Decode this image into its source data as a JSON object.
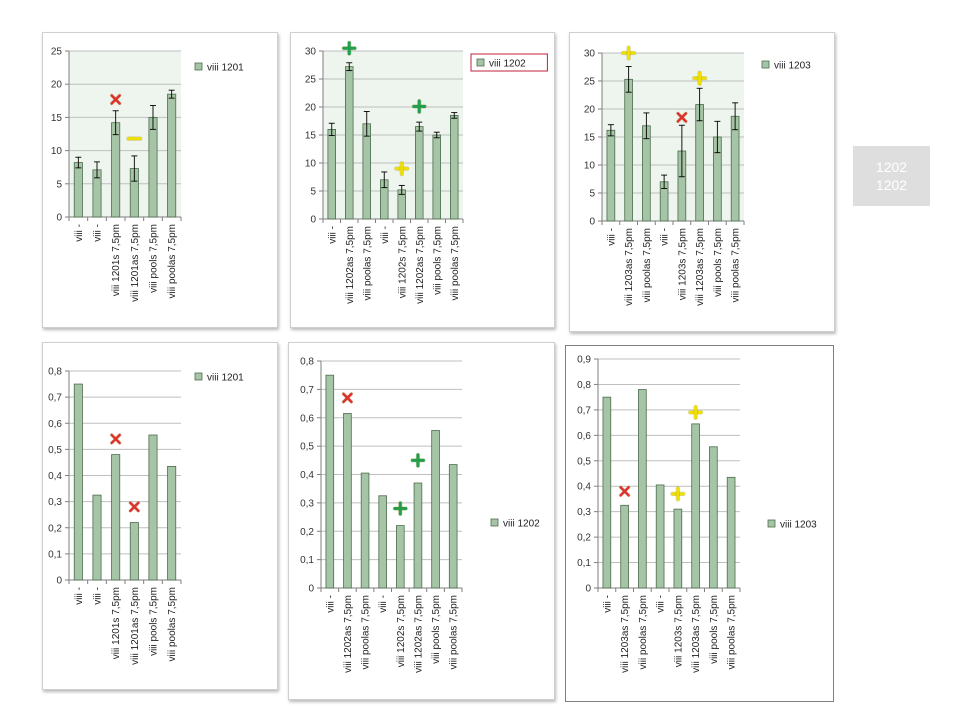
{
  "note": {
    "lines": [
      "1202",
      "1202"
    ]
  },
  "chart_data": [
    {
      "type": "bar",
      "categories": [
        "viii -",
        "viii -",
        "viii 1201s 7,5pm",
        "viii 1201as 7,5pm",
        "viii pools 7,5pm",
        "viii poolas 7,5pm"
      ],
      "series": [
        {
          "name": "viii 1201",
          "values": [
            8.2,
            7.1,
            14.2,
            7.3,
            15.0,
            18.5
          ],
          "errors": [
            0.8,
            1.2,
            1.8,
            1.9,
            1.8,
            0.6
          ]
        }
      ],
      "ylim": [
        0,
        25
      ],
      "yticks": [
        "0",
        "5",
        "10",
        "15",
        "20",
        "25"
      ],
      "legend": "top-right",
      "annotations": [
        {
          "symbol": "x",
          "color": "#e03030",
          "category": 2,
          "value": 17.7
        },
        {
          "symbol": "-",
          "color": "#f0e000",
          "category": 3,
          "value": 11.8
        }
      ],
      "colors": {
        "bar": "#a6c4a6",
        "bar_border": "#4d6b4d",
        "plot_bg": "#eef4ee"
      }
    },
    {
      "type": "bar",
      "categories": [
        "viii -",
        "viii 1202as 7,5pm",
        "viii poolas 7,5pm",
        "viii -",
        "viii 1202s 7,5pm",
        "viii 1202as 7,5pm",
        "viii pools 7,5pm",
        "viii poolas 7,5pm"
      ],
      "series": [
        {
          "name": "viii 1202",
          "values": [
            16.0,
            27.2,
            17.0,
            7.0,
            5.2,
            16.5,
            15.0,
            18.5
          ],
          "errors": [
            1.1,
            0.7,
            2.2,
            1.4,
            0.8,
            0.8,
            0.5,
            0.5
          ]
        }
      ],
      "ylim": [
        0,
        30
      ],
      "yticks": [
        "0",
        "5",
        "10",
        "15",
        "20",
        "25",
        "30"
      ],
      "legend": "top-right",
      "legend_boxed": true,
      "annotations": [
        {
          "symbol": "+",
          "color": "#20a050",
          "category": 1,
          "value": 30.5
        },
        {
          "symbol": "+",
          "color": "#20a050",
          "category": 5,
          "value": 20.1
        },
        {
          "symbol": "+",
          "color": "#f0e000",
          "category": 4,
          "value": 9.0
        }
      ],
      "colors": {
        "bar": "#a6c4a6",
        "bar_border": "#4d6b4d",
        "plot_bg": "#eef4ee"
      }
    },
    {
      "type": "bar",
      "categories": [
        "viii -",
        "viii 1203as 7,5pm",
        "viii poolas 7,5pm",
        "viii -",
        "viii 1203s 7,5pm",
        "viii 1203as 7,5pm",
        "viii pools 7,5pm",
        "viii poolas 7,5pm"
      ],
      "series": [
        {
          "name": "viii 1203",
          "values": [
            16.2,
            25.3,
            17.0,
            7.0,
            12.5,
            20.8,
            15.0,
            18.7
          ],
          "errors": [
            1.0,
            2.3,
            2.3,
            1.2,
            4.6,
            2.9,
            2.8,
            2.4
          ]
        }
      ],
      "ylim": [
        0,
        30
      ],
      "yticks": [
        "0",
        "5",
        "10",
        "15",
        "20",
        "25",
        "30"
      ],
      "legend": "top-right",
      "annotations": [
        {
          "symbol": "+",
          "color": "#f0e000",
          "category": 1,
          "value": 30.0
        },
        {
          "symbol": "+",
          "color": "#f0e000",
          "category": 5,
          "value": 25.5
        },
        {
          "symbol": "x",
          "color": "#e03030",
          "category": 4,
          "value": 18.5
        }
      ],
      "colors": {
        "bar": "#a6c4a6",
        "bar_border": "#4d6b4d",
        "plot_bg": "#eef4ee"
      }
    },
    {
      "type": "bar",
      "categories": [
        "viii -",
        "viii -",
        "viii 1201s 7,5pm",
        "viii 1201as 7,5pm",
        "viii pools 7,5pm",
        "viii poolas 7,5pm"
      ],
      "series": [
        {
          "name": "viii 1201",
          "values": [
            0.75,
            0.325,
            0.48,
            0.22,
            0.555,
            0.435
          ]
        }
      ],
      "ylim": [
        0,
        0.8
      ],
      "yticks": [
        "0",
        "0,1",
        "0,2",
        "0,3",
        "0,4",
        "0,5",
        "0,6",
        "0,7",
        "0,8"
      ],
      "legend": "top-right",
      "annotations": [
        {
          "symbol": "x",
          "color": "#e03030",
          "category": 2,
          "value": 0.54
        },
        {
          "symbol": "x",
          "color": "#e03030",
          "category": 3,
          "value": 0.28
        }
      ],
      "colors": {
        "bar": "#a6c4a6",
        "bar_border": "#4d6b4d",
        "plot_bg": "#ffffff"
      }
    },
    {
      "type": "bar",
      "categories": [
        "viii -",
        "viii 1202as 7,5pm",
        "viii poolas 7,5pm",
        "viii -",
        "viii 1202s 7,5pm",
        "viii 1202as 7,5pm",
        "viii pools 7,5pm",
        "viii poolas 7,5pm"
      ],
      "series": [
        {
          "name": "viii 1202",
          "values": [
            0.75,
            0.615,
            0.405,
            0.325,
            0.22,
            0.37,
            0.555,
            0.435
          ]
        }
      ],
      "ylim": [
        0,
        0.8
      ],
      "yticks": [
        "0",
        "0,1",
        "0,2",
        "0,3",
        "0,4",
        "0,5",
        "0,6",
        "0,7",
        "0,8"
      ],
      "legend": "right",
      "annotations": [
        {
          "symbol": "x",
          "color": "#e03030",
          "category": 1,
          "value": 0.67
        },
        {
          "symbol": "+",
          "color": "#20a050",
          "category": 4,
          "value": 0.28
        },
        {
          "symbol": "+",
          "color": "#20a050",
          "category": 5,
          "value": 0.45
        }
      ],
      "colors": {
        "bar": "#a6c4a6",
        "bar_border": "#4d6b4d",
        "plot_bg": "#ffffff"
      }
    },
    {
      "type": "bar",
      "categories": [
        "viii -",
        "viii 1203as 7,5pm",
        "viii poolas 7,5pm",
        "viii -",
        "viii 1203s 7,5pm",
        "viii 1203as 7,5pm",
        "viii pools 7,5pm",
        "viii poolas 7,5pm"
      ],
      "series": [
        {
          "name": "viii 1203",
          "values": [
            0.75,
            0.325,
            0.78,
            0.405,
            0.31,
            0.645,
            0.555,
            0.435
          ]
        }
      ],
      "ylim": [
        0,
        0.9
      ],
      "yticks": [
        "0",
        "0,1",
        "0,2",
        "0,3",
        "0,4",
        "0,5",
        "0,6",
        "0,7",
        "0,8",
        "0,9"
      ],
      "legend": "right",
      "annotations": [
        {
          "symbol": "x",
          "color": "#e03030",
          "category": 1,
          "value": 0.38
        },
        {
          "symbol": "+",
          "color": "#f0e000",
          "category": 4,
          "value": 0.37
        },
        {
          "symbol": "+",
          "color": "#f0e000",
          "category": 5,
          "value": 0.69
        }
      ],
      "colors": {
        "bar": "#a6c4a6",
        "bar_border": "#4d6b4d",
        "plot_bg": "#ffffff"
      }
    }
  ]
}
